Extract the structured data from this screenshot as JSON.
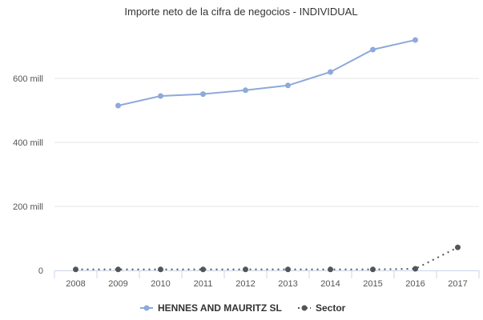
{
  "chart_data": {
    "type": "line",
    "title": "Importe neto de la cifra de negocios - INDIVIDUAL",
    "xlabel": "",
    "ylabel": "",
    "categories": [
      "2008",
      "2009",
      "2010",
      "2011",
      "2012",
      "2013",
      "2014",
      "2015",
      "2016",
      "2017"
    ],
    "ylim": [
      0,
      750
    ],
    "yticks": [
      {
        "value": 0,
        "label": "0"
      },
      {
        "value": 200,
        "label": "200 mill"
      },
      {
        "value": 400,
        "label": "400 mill"
      },
      {
        "value": 600,
        "label": "600 mill"
      }
    ],
    "grid": true,
    "legend_position": "bottom",
    "series": [
      {
        "name": "HENNES AND MAURITZ SL",
        "style": "solid",
        "color": "#8ea9db",
        "values": [
          null,
          515,
          545,
          551,
          563,
          578,
          620,
          690,
          720,
          null
        ]
      },
      {
        "name": "Sector",
        "style": "dotted",
        "color": "#555555",
        "values": [
          3,
          3,
          3,
          3,
          3,
          3,
          3,
          3,
          5,
          72
        ]
      }
    ]
  }
}
